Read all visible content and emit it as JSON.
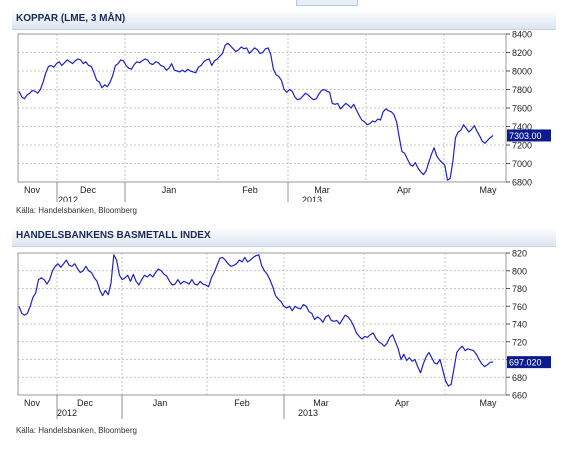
{
  "chart_data": [
    {
      "type": "line",
      "title": "KOPPAR (LME, 3 MÅN)",
      "source": "Källa: Handelsbanken, Bloomberg",
      "x_labels": [
        "Nov",
        "Dec",
        "Jan",
        "Feb",
        "Mar",
        "Apr",
        "May"
      ],
      "x_sub_labels": [
        "2012",
        "2013"
      ],
      "y_ticks": [
        "8400",
        "8200",
        "8000",
        "7800",
        "7600",
        "7400",
        "7200",
        "7000",
        "6800"
      ],
      "ylim": [
        6800,
        8400
      ],
      "last_value": "7303.00",
      "grid": true,
      "color": "#1f22c6",
      "series": [
        {
          "values": [
            7780,
            7720,
            7700,
            7740,
            7760,
            7790,
            7780,
            7760,
            7800,
            7880,
            7980,
            8050,
            8060,
            8040,
            8080,
            8100,
            8060,
            8090,
            8120,
            8100,
            8080,
            8110,
            8130,
            8120,
            8080,
            8100,
            8060,
            8050,
            7980,
            7900,
            7880,
            7820,
            7850,
            7830,
            7880,
            7950,
            8060,
            8080,
            8120,
            8110,
            8060,
            8030,
            8020,
            8070,
            8100,
            8090,
            8110,
            8130,
            8120,
            8080,
            8070,
            8100,
            8090,
            8060,
            8050,
            8010,
            8030,
            8080,
            8010,
            8000,
            7990,
            8010,
            7990,
            8020,
            8000,
            7990,
            7980,
            8040,
            8060,
            8100,
            8120,
            8130,
            8060,
            8110,
            8130,
            8160,
            8190,
            8280,
            8300,
            8270,
            8240,
            8210,
            8230,
            8260,
            8240,
            8250,
            8190,
            8220,
            8250,
            8230,
            8190,
            8200,
            8240,
            8250,
            8180,
            8020,
            7960,
            7940,
            7900,
            7800,
            7770,
            7800,
            7780,
            7720,
            7690,
            7700,
            7730,
            7760,
            7740,
            7710,
            7690,
            7700,
            7750,
            7790,
            7800,
            7780,
            7770,
            7650,
            7640,
            7650,
            7590,
            7620,
            7650,
            7630,
            7600,
            7640,
            7580,
            7520,
            7470,
            7450,
            7420,
            7430,
            7460,
            7450,
            7480,
            7470,
            7560,
            7590,
            7570,
            7560,
            7530,
            7450,
            7280,
            7130,
            7110,
            7050,
            6990,
            6970,
            7010,
            6950,
            6910,
            6880,
            6920,
            7010,
            7100,
            7170,
            7080,
            7040,
            7010,
            6980,
            6820,
            6840,
            7020,
            7280,
            7340,
            7360,
            7420,
            7380,
            7340,
            7370,
            7410,
            7350,
            7300,
            7240,
            7220,
            7250,
            7280,
            7303
          ]
        }
      ]
    },
    {
      "type": "line",
      "title": "HANDELSBANKENS BASMETALL INDEX",
      "source": "Källa: Handelsbanken, Bloomberg",
      "x_labels": [
        "Nov",
        "Dec",
        "Jan",
        "Feb",
        "Mar",
        "Apr",
        "May"
      ],
      "x_sub_labels": [
        "2012",
        "2013"
      ],
      "y_ticks": [
        "820",
        "800",
        "780",
        "760",
        "740",
        "720",
        "700",
        "680",
        "660"
      ],
      "ylim": [
        660,
        820
      ],
      "last_value": "697.020",
      "grid": true,
      "color": "#1f22c6",
      "series": [
        {
          "values": [
            760,
            752,
            750,
            752,
            760,
            770,
            775,
            790,
            792,
            790,
            785,
            790,
            800,
            805,
            808,
            804,
            808,
            812,
            806,
            805,
            808,
            802,
            798,
            800,
            805,
            800,
            798,
            792,
            788,
            778,
            772,
            778,
            773,
            786,
            818,
            812,
            795,
            790,
            792,
            795,
            788,
            796,
            788,
            784,
            790,
            795,
            793,
            796,
            793,
            798,
            802,
            800,
            796,
            794,
            788,
            784,
            785,
            790,
            785,
            788,
            787,
            785,
            790,
            785,
            784,
            788,
            785,
            784,
            782,
            792,
            798,
            806,
            814,
            815,
            812,
            808,
            805,
            806,
            808,
            812,
            810,
            815,
            810,
            812,
            815,
            817,
            818,
            806,
            800,
            796,
            790,
            782,
            772,
            768,
            765,
            760,
            758,
            760,
            755,
            760,
            758,
            757,
            762,
            760,
            754,
            752,
            745,
            748,
            746,
            742,
            748,
            750,
            744,
            743,
            744,
            740,
            745,
            750,
            748,
            744,
            738,
            730,
            726,
            723,
            726,
            725,
            728,
            730,
            724,
            720,
            718,
            715,
            718,
            725,
            728,
            720,
            712,
            700,
            706,
            699,
            702,
            698,
            700,
            692,
            685,
            695,
            703,
            708,
            702,
            696,
            695,
            700,
            688,
            676,
            670,
            672,
            690,
            708,
            712,
            715,
            710,
            712,
            711,
            710,
            706,
            700,
            695,
            692,
            694,
            697,
            697.02
          ]
        }
      ]
    }
  ]
}
